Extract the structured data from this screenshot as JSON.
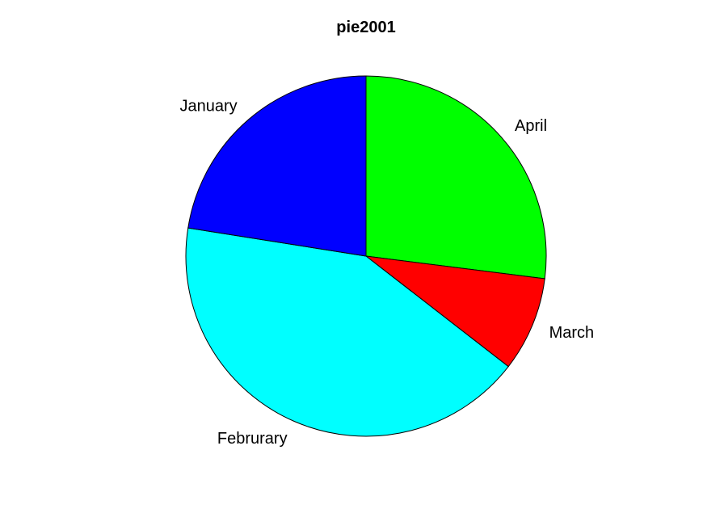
{
  "chart_data": {
    "type": "pie",
    "title": "pie2001",
    "start_angle_deg": 90,
    "direction": "clockwise",
    "slices": [
      {
        "label": "April",
        "value": 27,
        "color": "#00ff00"
      },
      {
        "label": "March",
        "value": 8.5,
        "color": "#ff0000"
      },
      {
        "label": "Februrary",
        "value": 42,
        "color": "#00ffff"
      },
      {
        "label": "January",
        "value": 22.5,
        "color": "#0000ff"
      }
    ]
  }
}
